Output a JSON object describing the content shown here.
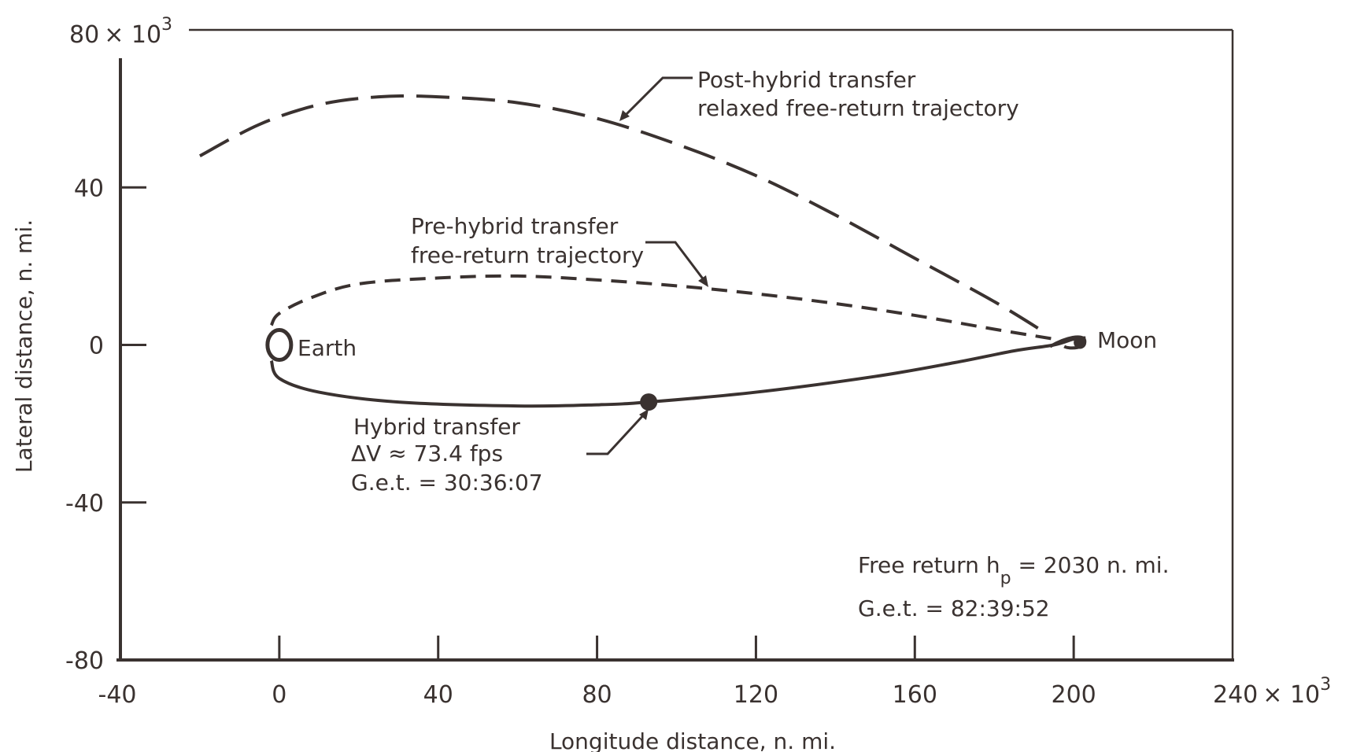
{
  "chart_data": {
    "type": "line",
    "title": "",
    "xlabel": "Longitude distance, n. mi.",
    "ylabel": "Lateral distance, n. mi.",
    "xlim": [
      -40000,
      240000
    ],
    "ylim": [
      -80000,
      80000
    ],
    "x_ticks": [
      -40000,
      0,
      40000,
      80000,
      120000,
      160000,
      200000,
      240000
    ],
    "x_tick_labels": [
      "-40",
      "0",
      "40",
      "80",
      "120",
      "160",
      "200",
      "240"
    ],
    "x_multiplier": "× 10",
    "x_multiplier_exp": "3",
    "y_ticks": [
      -80000,
      -40000,
      0,
      40000,
      80000
    ],
    "y_tick_labels": [
      "-80",
      "-40",
      "0",
      "40",
      "80"
    ],
    "y_multiplier": "× 10",
    "y_multiplier_exp": "3",
    "grid": false,
    "series": [
      {
        "style": "long-dash",
        "x": [
          -20000,
          -5000,
          10000,
          25000,
          40000,
          60000,
          80000,
          100000,
          120000,
          140000,
          160000,
          180000,
          193000
        ],
        "y": [
          48000,
          56000,
          61000,
          63000,
          63000,
          61500,
          57500,
          51000,
          43000,
          33000,
          22000,
          11000,
          3000
        ]
      },
      {
        "style": "short-dash",
        "x": [
          -2000,
          0,
          8000,
          20000,
          40000,
          60000,
          80000,
          100000,
          120000,
          140000,
          160000,
          180000,
          195000
        ],
        "y": [
          5000,
          8000,
          12000,
          15500,
          17000,
          17500,
          16500,
          15000,
          13000,
          10500,
          7500,
          4000,
          1500
        ]
      },
      {
        "style": "solid",
        "x": [
          -2000,
          0,
          10000,
          30000,
          60000,
          80000,
          93000,
          120000,
          150000,
          170000,
          185000,
          195000,
          200000,
          203000
        ],
        "y": [
          -4000,
          -8500,
          -12000,
          -14500,
          -15500,
          -15200,
          -14500,
          -12000,
          -8000,
          -4500,
          -1500,
          0,
          1500,
          1800
        ]
      }
    ],
    "annotations": {
      "post_hybrid": [
        "Post-hybrid transfer",
        "relaxed free-return trajectory"
      ],
      "pre_hybrid": [
        "Pre-hybrid transfer",
        "free-return trajectory"
      ],
      "hybrid": [
        "Hybrid transfer",
        "ΔV ≈ 73.4 fps",
        "G.e.t. = 30:36:07"
      ],
      "earth": "Earth",
      "moon": "Moon",
      "free_return_prefix": "Free return h",
      "free_return_sub": "p",
      "free_return_suffix": " = 2030 n. mi.",
      "free_return_get": "G.e.t. = 82:39:52"
    },
    "markers": {
      "earth": {
        "x": 0,
        "y": 0
      },
      "moon": {
        "x": 200000,
        "y": 800
      },
      "hybrid_burn": {
        "x": 93000,
        "y": -14500
      }
    }
  }
}
